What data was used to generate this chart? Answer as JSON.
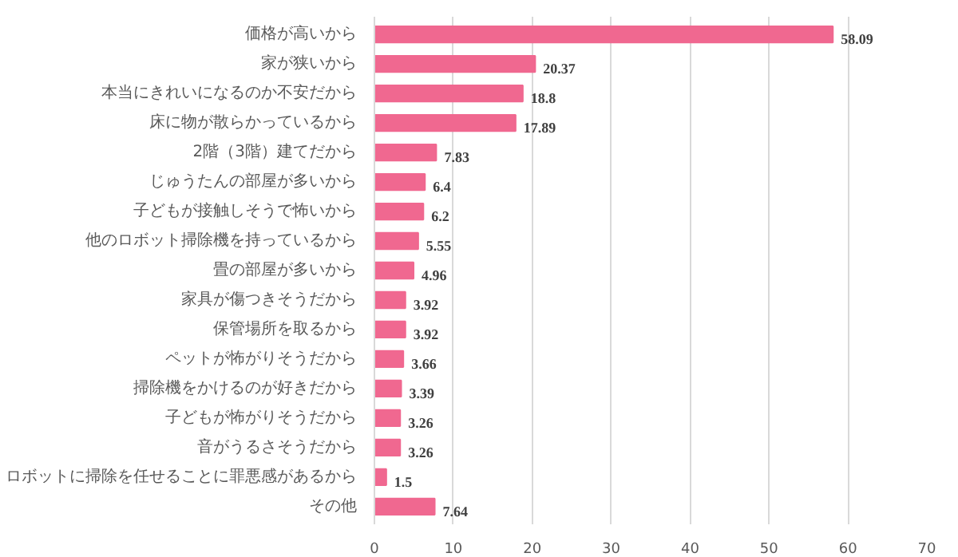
{
  "chart_data": {
    "type": "bar",
    "orientation": "horizontal",
    "categories": [
      "価格が高いから",
      "家が狭いから",
      "本当にきれいになるのか不安だから",
      "床に物が散らかっているから",
      "2階（3階）建てだから",
      "じゅうたんの部屋が多いから",
      "子どもが接触しそうで怖いから",
      "他のロボット掃除機を持っているから",
      "畳の部屋が多いから",
      "家具が傷つきそうだから",
      "保管場所を取るから",
      "ペットが怖がりそうだから",
      "掃除機をかけるのが好きだから",
      "子どもが怖がりそうだから",
      "音がうるさそうだから",
      "ロボットに掃除を任せることに罪悪感があるから",
      "その他"
    ],
    "values": [
      58.09,
      20.37,
      18.8,
      17.89,
      7.83,
      6.4,
      6.2,
      5.55,
      4.96,
      3.92,
      3.92,
      3.66,
      3.39,
      3.26,
      3.26,
      1.5,
      7.64
    ],
    "color": "#f06890",
    "xlim": [
      0,
      70
    ],
    "xticks": [
      0,
      10,
      20,
      30,
      40,
      50,
      60,
      70
    ],
    "grid": "x",
    "data_labels": true
  }
}
